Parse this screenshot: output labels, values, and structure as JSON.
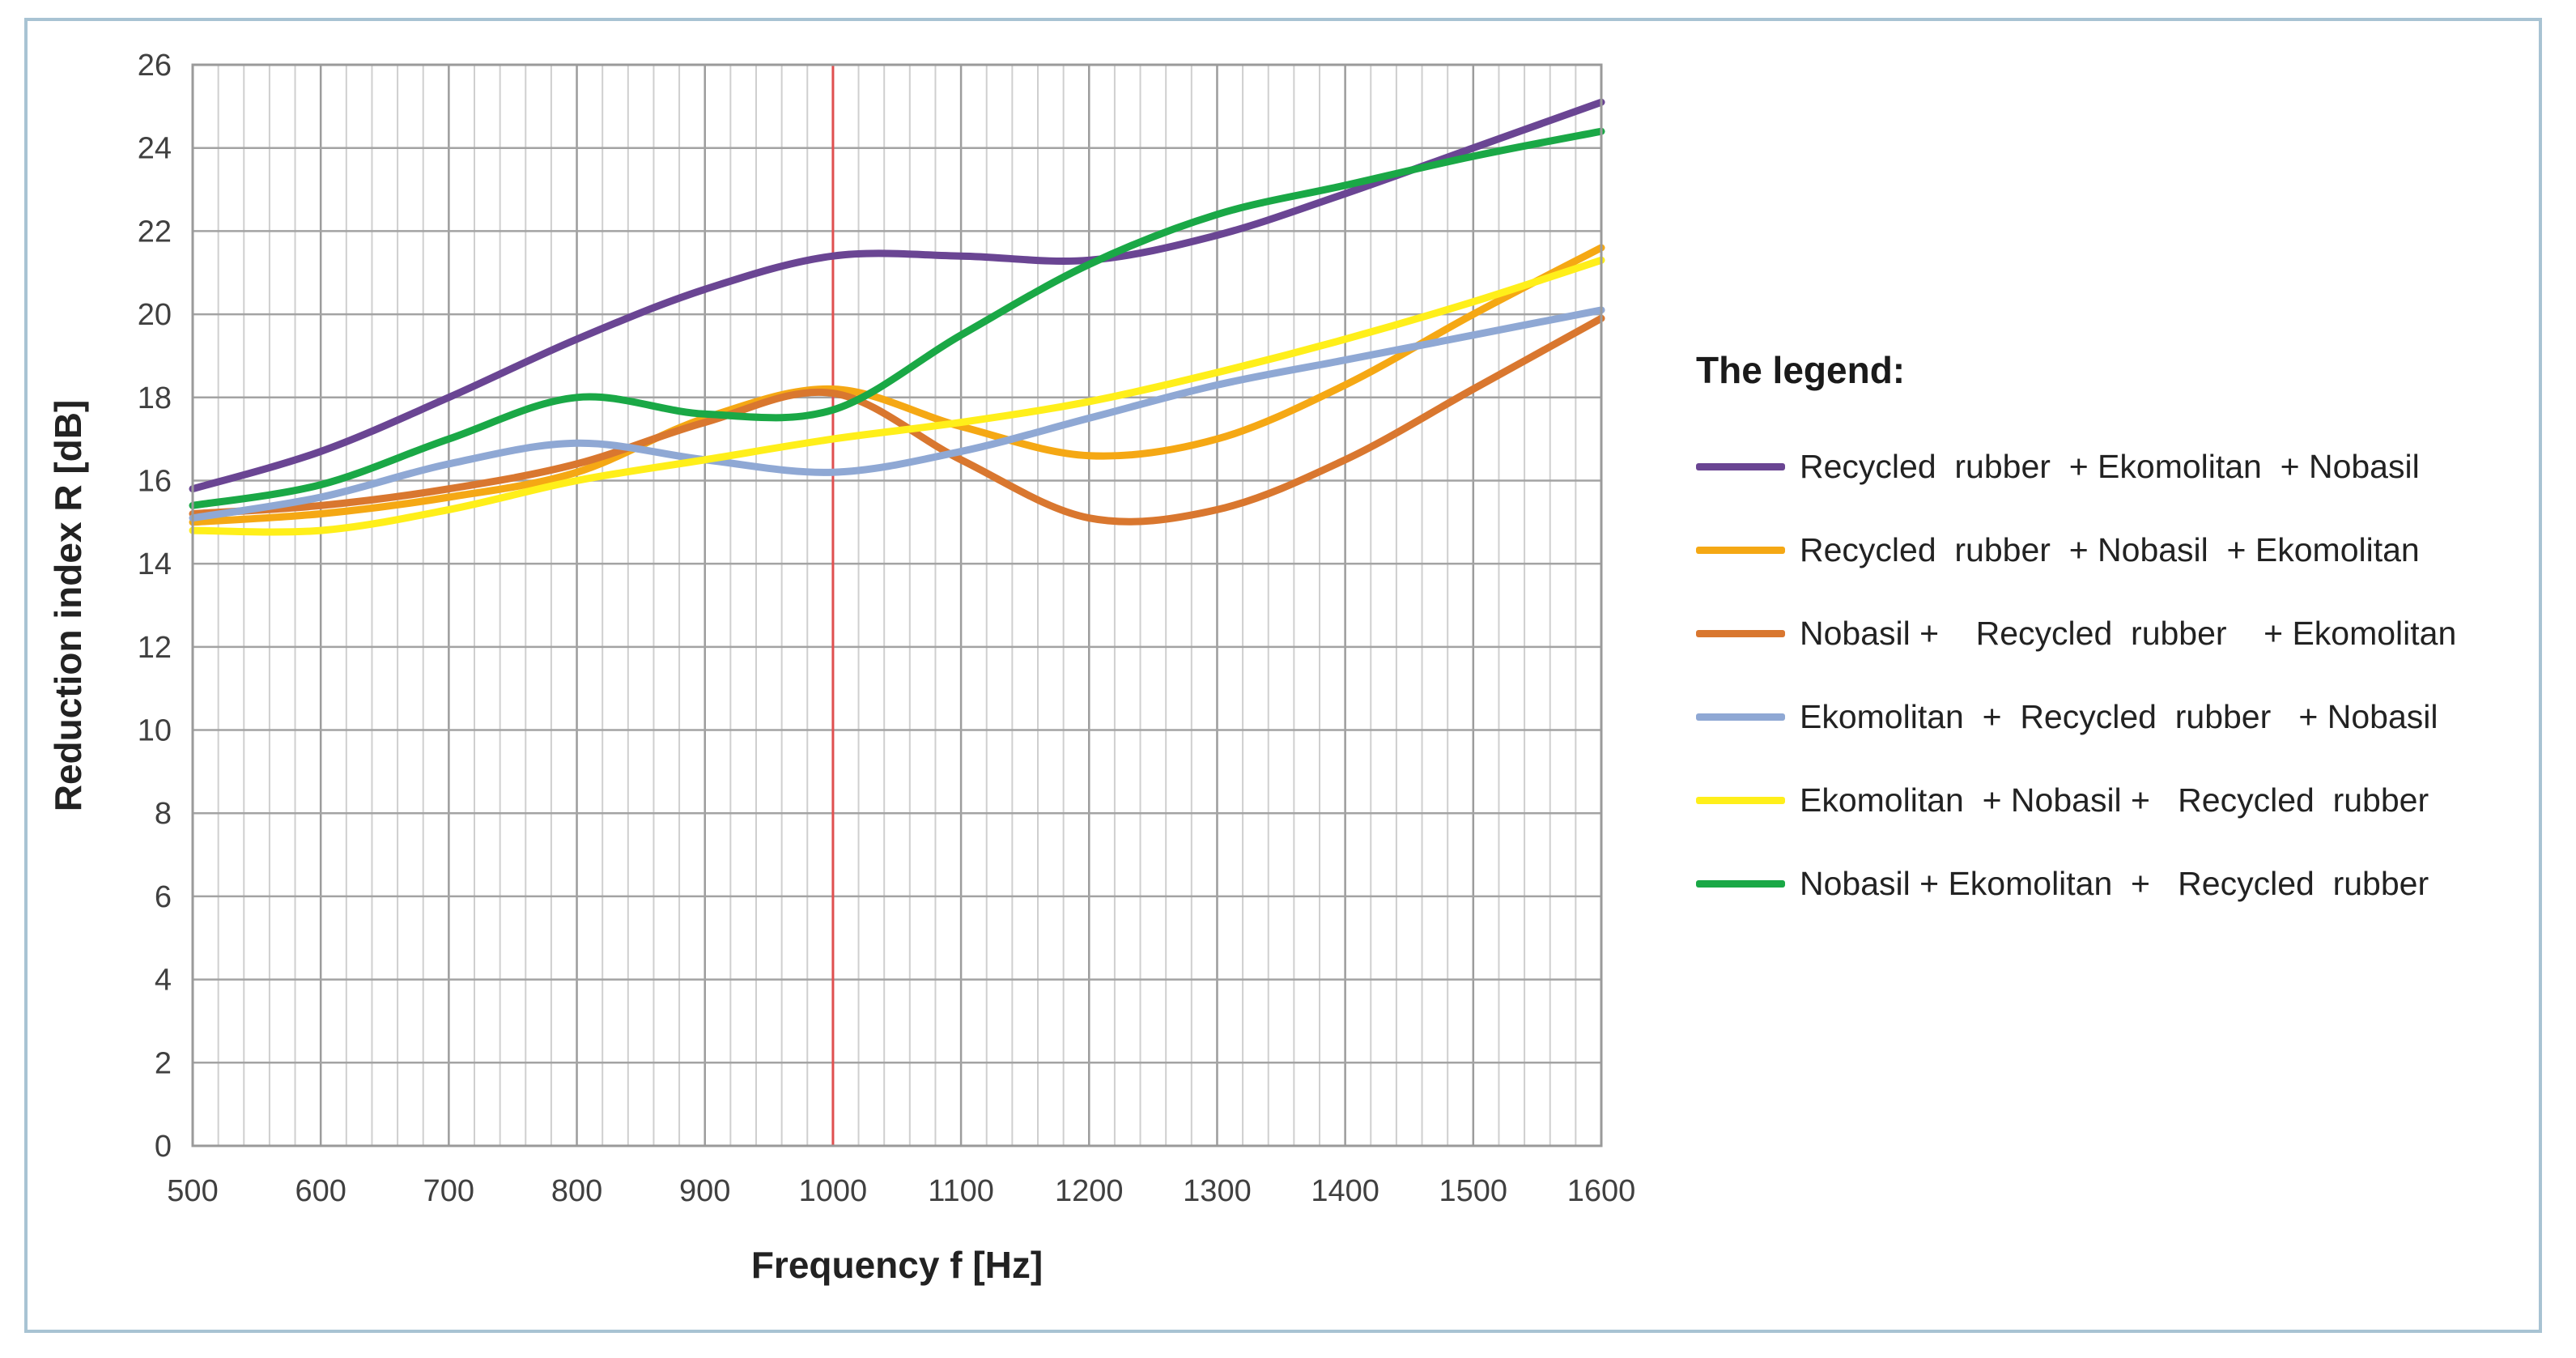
{
  "chart_data": {
    "type": "line",
    "title": "",
    "xlabel": "Frequency f [Hz]",
    "ylabel": "Reduction index R  [dB]",
    "xlim": [
      500,
      1600
    ],
    "ylim": [
      0,
      26
    ],
    "x_ticks": [
      500,
      600,
      700,
      800,
      900,
      1000,
      1100,
      1200,
      1300,
      1400,
      1500,
      1600
    ],
    "y_ticks": [
      0,
      2,
      4,
      6,
      8,
      10,
      12,
      14,
      16,
      18,
      20,
      22,
      24,
      26
    ],
    "grid": "on (minor vertical lines every 20 Hz)",
    "reference_line": {
      "x": 1000,
      "color": "#e05050"
    },
    "legend_title": "The legend:",
    "legend_position": "right",
    "series": [
      {
        "name": "Recycled  rubber  + Ekomolitan  + Nobasil",
        "color": "#6a4593",
        "x": [
          500,
          600,
          700,
          800,
          900,
          1000,
          1100,
          1200,
          1300,
          1400,
          1500,
          1600
        ],
        "values": [
          15.8,
          16.7,
          18.0,
          19.4,
          20.6,
          21.4,
          21.4,
          21.3,
          21.9,
          22.9,
          24.0,
          25.1
        ]
      },
      {
        "name": "Recycled  rubber  + Nobasil  + Ekomolitan",
        "color": "#f5a814",
        "x": [
          500,
          600,
          700,
          800,
          900,
          1000,
          1100,
          1200,
          1300,
          1400,
          1500,
          1600
        ],
        "values": [
          15.0,
          15.2,
          15.6,
          16.2,
          17.5,
          18.2,
          17.3,
          16.6,
          17.0,
          18.3,
          20.0,
          21.6
        ]
      },
      {
        "name": "Nobasil +    Recycled  rubber    + Ekomolitan",
        "color": "#d9772f",
        "x": [
          500,
          600,
          700,
          800,
          900,
          1000,
          1100,
          1200,
          1300,
          1400,
          1500,
          1600
        ],
        "values": [
          15.2,
          15.4,
          15.8,
          16.4,
          17.4,
          18.1,
          16.5,
          15.1,
          15.3,
          16.5,
          18.2,
          19.9
        ]
      },
      {
        "name": "Ekomolitan  +  Recycled  rubber   + Nobasil",
        "color": "#8fa8d4",
        "x": [
          500,
          600,
          700,
          800,
          900,
          1000,
          1100,
          1200,
          1300,
          1400,
          1500,
          1600
        ],
        "values": [
          15.1,
          15.6,
          16.4,
          16.9,
          16.5,
          16.2,
          16.7,
          17.5,
          18.3,
          18.9,
          19.5,
          20.1
        ]
      },
      {
        "name": "Ekomolitan  + Nobasil +   Recycled  rubber",
        "color": "#ffef1a",
        "x": [
          500,
          600,
          700,
          800,
          900,
          1000,
          1100,
          1200,
          1300,
          1400,
          1500,
          1600
        ],
        "values": [
          14.8,
          14.8,
          15.3,
          16.0,
          16.5,
          17.0,
          17.4,
          17.9,
          18.6,
          19.4,
          20.3,
          21.3
        ]
      },
      {
        "name": "Nobasil + Ekomolitan  +   Recycled  rubber",
        "color": "#1aa846",
        "x": [
          500,
          600,
          700,
          800,
          900,
          1000,
          1100,
          1200,
          1300,
          1400,
          1500,
          1600
        ],
        "values": [
          15.4,
          15.9,
          17.0,
          18.0,
          17.6,
          17.7,
          19.5,
          21.2,
          22.4,
          23.1,
          23.8,
          24.4
        ]
      }
    ]
  }
}
